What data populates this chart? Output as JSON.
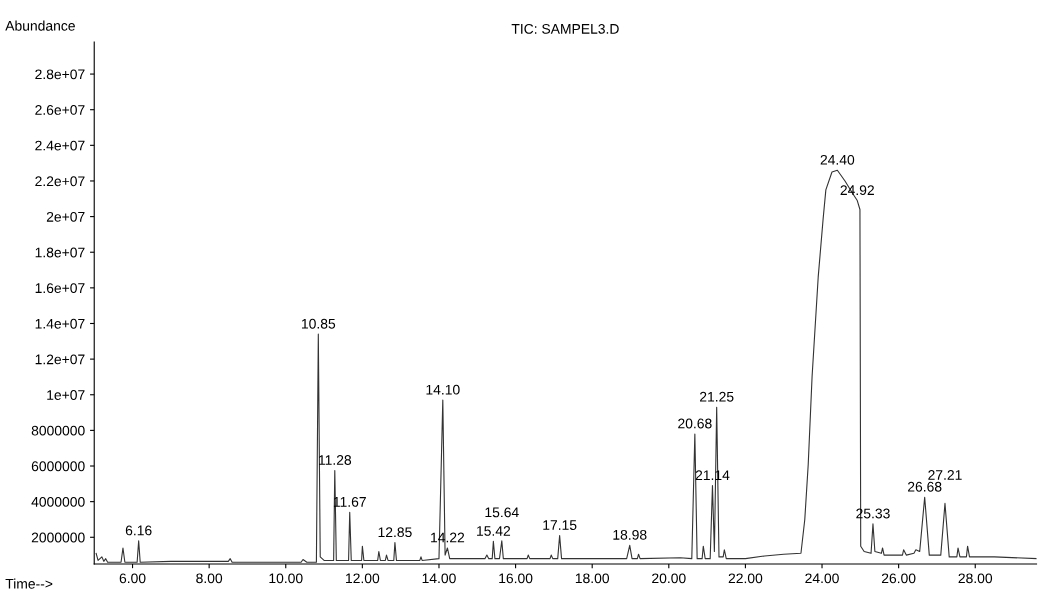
{
  "chart_data": {
    "type": "line",
    "title": "TIC: SAMPEL3.D",
    "ylabel": "Abundance",
    "xlabel": "Time-->",
    "xlim": [
      5.0,
      29.6
    ],
    "ylim": [
      500000,
      29800000
    ],
    "xticks": [
      {
        "value": 6,
        "label": "6.00"
      },
      {
        "value": 8,
        "label": "8.00"
      },
      {
        "value": 10,
        "label": "10.00"
      },
      {
        "value": 12,
        "label": "12.00"
      },
      {
        "value": 14,
        "label": "14.00"
      },
      {
        "value": 16,
        "label": "16.00"
      },
      {
        "value": 18,
        "label": "18.00"
      },
      {
        "value": 20,
        "label": "20.00"
      },
      {
        "value": 22,
        "label": "22.00"
      },
      {
        "value": 24,
        "label": "24.00"
      },
      {
        "value": 26,
        "label": "26.00"
      },
      {
        "value": 28,
        "label": "28.00"
      }
    ],
    "yticks": [
      2000000,
      4000000,
      6000000,
      8000000,
      {
        "value": 10000000,
        "label": "1e+07"
      },
      {
        "value": 12000000,
        "label": "1.2e+07"
      },
      {
        "value": 14000000,
        "label": "1.4e+07"
      },
      {
        "value": 16000000,
        "label": "1.6e+07"
      },
      {
        "value": 18000000,
        "label": "1.8e+07"
      },
      {
        "value": 20000000,
        "label": "2e+07"
      },
      {
        "value": 22000000,
        "label": "2.2e+07"
      },
      {
        "value": 24000000,
        "label": "2.4e+07"
      },
      {
        "value": 26000000,
        "label": "2.6e+07"
      },
      {
        "value": 28000000,
        "label": "2.8e+07"
      }
    ],
    "grid": false,
    "legend": false,
    "marker": "none",
    "line_style": "solid",
    "series": [
      {
        "color": "#333333",
        "x": [
          5.05,
          5.1,
          5.2,
          5.25,
          5.3,
          5.35,
          5.7,
          5.75,
          5.8,
          6.12,
          6.16,
          6.2,
          7.0,
          8.5,
          8.55,
          8.6,
          10.4,
          10.45,
          10.55,
          10.8,
          10.85,
          10.9,
          11.0,
          11.25,
          11.28,
          11.32,
          11.64,
          11.67,
          11.71,
          11.98,
          12.0,
          12.04,
          12.4,
          12.43,
          12.47,
          12.6,
          12.63,
          12.67,
          12.82,
          12.85,
          12.89,
          13.5,
          13.53,
          13.56,
          14.0,
          14.1,
          14.16,
          14.22,
          14.28,
          15.2,
          15.25,
          15.3,
          15.39,
          15.42,
          15.46,
          15.58,
          15.61,
          15.64,
          15.68,
          16.3,
          16.33,
          16.37,
          16.9,
          16.93,
          16.97,
          17.1,
          17.15,
          17.2,
          18.3,
          18.9,
          18.98,
          19.04,
          19.18,
          19.21,
          19.25,
          20.3,
          20.6,
          20.68,
          20.74,
          20.87,
          20.9,
          20.95,
          21.08,
          21.14,
          21.19,
          21.25,
          21.31,
          21.42,
          21.45,
          21.5,
          22.0,
          22.5,
          23.0,
          23.45,
          23.55,
          23.64,
          23.74,
          23.9,
          24.03,
          24.1,
          24.26,
          24.4,
          24.6,
          24.8,
          24.92,
          24.99,
          25.01,
          25.1,
          25.28,
          25.33,
          25.38,
          25.55,
          25.58,
          25.62,
          26.1,
          26.13,
          26.2,
          26.4,
          26.45,
          26.55,
          26.68,
          26.8,
          27.1,
          27.21,
          27.32,
          27.52,
          27.55,
          27.6,
          27.77,
          27.8,
          27.85,
          28.5,
          29.6
        ],
        "values": [
          1100000,
          700000,
          900000,
          650000,
          800000,
          600000,
          600000,
          1400000,
          600000,
          600000,
          1800000,
          600000,
          650000,
          650000,
          800000,
          600000,
          600000,
          750000,
          600000,
          600000,
          13400000,
          900000,
          700000,
          700000,
          5750000,
          700000,
          700000,
          3400000,
          700000,
          700000,
          1500000,
          700000,
          700000,
          1200000,
          700000,
          700000,
          1000000,
          700000,
          700000,
          1700000,
          700000,
          700000,
          900000,
          700000,
          800000,
          9700000,
          1000000,
          1400000,
          800000,
          800000,
          1000000,
          800000,
          800000,
          1770000,
          800000,
          800000,
          1300000,
          1800000,
          800000,
          800000,
          1000000,
          800000,
          800000,
          1000000,
          800000,
          800000,
          2100000,
          800000,
          800000,
          800000,
          1550000,
          800000,
          800000,
          1050000,
          800000,
          850000,
          800000,
          7800000,
          800000,
          800000,
          1500000,
          800000,
          800000,
          4900000,
          1200000,
          9300000,
          900000,
          900000,
          1300000,
          800000,
          800000,
          950000,
          1050000,
          1100000,
          3000000,
          6100000,
          11000000,
          16600000,
          19900000,
          21500000,
          22500000,
          22600000,
          22000000,
          21300000,
          20900000,
          20400000,
          1500000,
          1200000,
          1100000,
          2750000,
          1200000,
          1100000,
          1400000,
          1000000,
          1000000,
          1300000,
          1000000,
          1100000,
          1300000,
          1200000,
          4250000,
          1000000,
          1000000,
          3900000,
          900000,
          900000,
          1400000,
          900000,
          900000,
          1500000,
          900000,
          900000,
          800000
        ]
      }
    ],
    "annotations": [
      {
        "text": "6.16",
        "x": 6.16,
        "y": 1800000
      },
      {
        "text": "10.85",
        "x": 10.85,
        "y": 13400000
      },
      {
        "text": "11.28",
        "x": 11.28,
        "y": 5750000
      },
      {
        "text": "11.67",
        "x": 11.67,
        "y": 3400000
      },
      {
        "text": "12.85",
        "x": 12.85,
        "y": 1700000
      },
      {
        "text": "14.10",
        "x": 14.1,
        "y": 9700000
      },
      {
        "text": "14.22",
        "x": 14.22,
        "y": 1400000
      },
      {
        "text": "15.42",
        "x": 15.42,
        "y": 1770000
      },
      {
        "text": "15.64",
        "x": 15.64,
        "y": 1800000
      },
      {
        "text": "17.15",
        "x": 17.15,
        "y": 2100000
      },
      {
        "text": "18.98",
        "x": 18.98,
        "y": 1550000
      },
      {
        "text": "20.68",
        "x": 20.68,
        "y": 7800000
      },
      {
        "text": "21.14",
        "x": 21.14,
        "y": 4900000
      },
      {
        "text": "21.25",
        "x": 21.25,
        "y": 9300000
      },
      {
        "text": "24.40",
        "x": 24.4,
        "y": 22600000
      },
      {
        "text": "24.92",
        "x": 24.92,
        "y": 20900000
      },
      {
        "text": "25.33",
        "x": 25.33,
        "y": 2750000
      },
      {
        "text": "26.68",
        "x": 26.68,
        "y": 4250000
      },
      {
        "text": "27.21",
        "x": 27.21,
        "y": 3900000
      }
    ]
  }
}
